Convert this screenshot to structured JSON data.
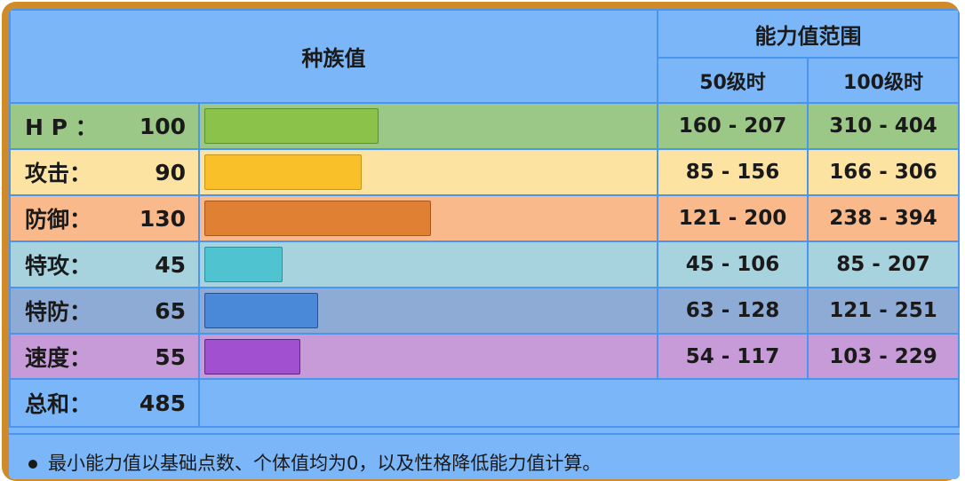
{
  "header": {
    "base_stats": "种族值",
    "range": "能力值范围",
    "lv50": "50级时",
    "lv100": "100级时"
  },
  "rows": [
    {
      "label": "H P ：",
      "value": "100",
      "range50": "160 - 207",
      "range100": "310 - 404",
      "bar_fraction": 0.392,
      "bg": "#9bc886",
      "bar": "#8bc34a",
      "barBorder": "#5a8f2a"
    },
    {
      "label": "攻击：",
      "value": "90",
      "range50": "85 - 156",
      "range100": "166 - 306",
      "bar_fraction": 0.353,
      "bg": "#fde3a1",
      "bar": "#f9c02a",
      "barBorder": "#c7941a"
    },
    {
      "label": "防御：",
      "value": "130",
      "range50": "121 - 200",
      "range100": "238 - 394",
      "bar_fraction": 0.51,
      "bg": "#f9b98a",
      "bar": "#e08032",
      "barBorder": "#a8561c"
    },
    {
      "label": "特攻：",
      "value": "45",
      "range50": "45 - 106",
      "range100": "85 - 207",
      "bar_fraction": 0.176,
      "bg": "#a7d3de",
      "bar": "#4fc3cf",
      "barBorder": "#2c8f9a"
    },
    {
      "label": "特防：",
      "value": "65",
      "range50": "63 - 128",
      "range100": "121 - 251",
      "bar_fraction": 0.255,
      "bg": "#8eabd6",
      "bar": "#4a88d8",
      "barBorder": "#2a4f90"
    },
    {
      "label": "速度：",
      "value": "55",
      "range50": "54 - 117",
      "range100": "103 - 229",
      "bar_fraction": 0.216,
      "bg": "#c79bd8",
      "bar": "#a150d0",
      "barBorder": "#5a2a80"
    }
  ],
  "total": {
    "label": "总和：",
    "value": "485"
  },
  "note": "最小能力值以基础点数、个体值均为0，以及性格降低能力值计算。",
  "colors": {
    "header_bg": "#7bb6f8",
    "grid": "#4a96ef",
    "frame": "#d18a2a"
  }
}
